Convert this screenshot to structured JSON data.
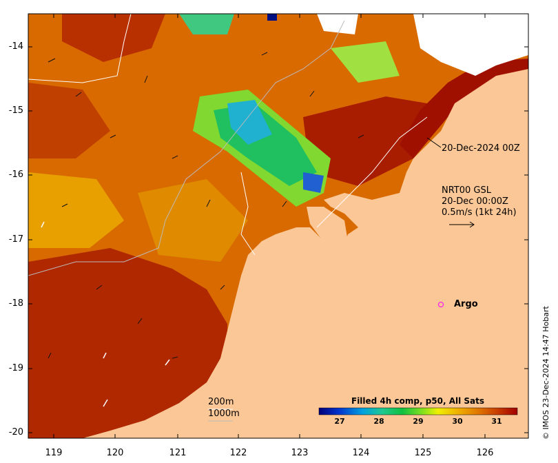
{
  "map": {
    "y_ticks": [
      "-14",
      "-15",
      "-16",
      "-17",
      "-18",
      "-19",
      "-20"
    ],
    "x_ticks": [
      "119",
      "120",
      "121",
      "122",
      "123",
      "124",
      "125",
      "126"
    ],
    "timestamp_label": "20-Dec-2024 00Z",
    "current_label": "NRT00 GSL\n20-Dec 00:00Z\n0.5m/s (1kt 24h)",
    "argo_label": "Argo",
    "isobath_labels": [
      "200m",
      "1000m"
    ],
    "credit": "© IMOS 23-Dec-2024 14:47 Hobart"
  },
  "colorbar": {
    "title": "Filled 4h comp, p50, All Sats",
    "ticks": [
      "27",
      "28",
      "29",
      "30",
      "31"
    ],
    "range": [
      26.5,
      31.6
    ],
    "colors": [
      "#00007a",
      "#0033cc",
      "#00a0e0",
      "#20c890",
      "#10c040",
      "#80e020",
      "#f0f000",
      "#f0b000",
      "#e07800",
      "#c83c00",
      "#a00000"
    ]
  },
  "colors": {
    "land": "#fcc796",
    "ocean_warm": "#c83c00",
    "ocean_mid": "#e07800"
  }
}
